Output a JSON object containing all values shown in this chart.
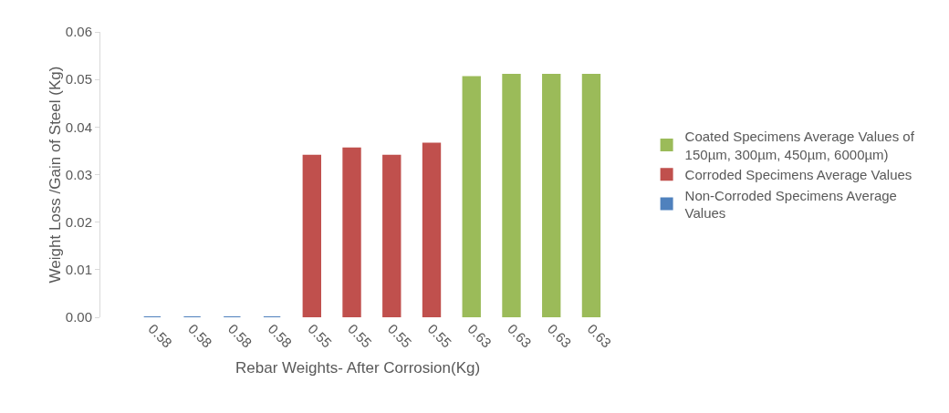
{
  "chart_data": {
    "type": "bar",
    "xlabel": "Rebar Weights- After Corrosion(Kg)",
    "ylabel": "Weight Loss /Gain of Steel (Kg)",
    "categories": [
      "0.58",
      "0.58",
      "0.58",
      "0.58",
      "0.55",
      "0.55",
      "0.55",
      "0.55",
      "0.63",
      "0.63",
      "0.63",
      "0.63"
    ],
    "series": [
      {
        "name": "Coated Specimens Average Values of 150µm, 300µm, 450µm, 6000µm)",
        "color": "#9bbb59",
        "values": [
          null,
          null,
          null,
          null,
          null,
          null,
          null,
          null,
          0.0505,
          0.051,
          0.051,
          0.051
        ]
      },
      {
        "name": "Corroded Specimens Average Values",
        "color": "#c0504d",
        "values": [
          null,
          null,
          null,
          null,
          0.034,
          0.0355,
          0.034,
          0.0365,
          null,
          null,
          null,
          null
        ]
      },
      {
        "name": "Non-Corroded Specimens Average Values",
        "color": "#4f81bd",
        "values": [
          0,
          0,
          0,
          0,
          null,
          null,
          null,
          null,
          null,
          null,
          null,
          null
        ]
      }
    ],
    "ylim": [
      0,
      0.06
    ],
    "yticks": [
      {
        "value": 0,
        "label": "0.00"
      },
      {
        "value": 0.01,
        "label": "0.01"
      },
      {
        "value": 0.02,
        "label": "0.02"
      },
      {
        "value": 0.03,
        "label": "0.03"
      },
      {
        "value": 0.04,
        "label": "0.04"
      },
      {
        "value": 0.05,
        "label": "0.05"
      },
      {
        "value": 0.06,
        "label": "0.06"
      }
    ],
    "grid": false,
    "legend": "right"
  }
}
